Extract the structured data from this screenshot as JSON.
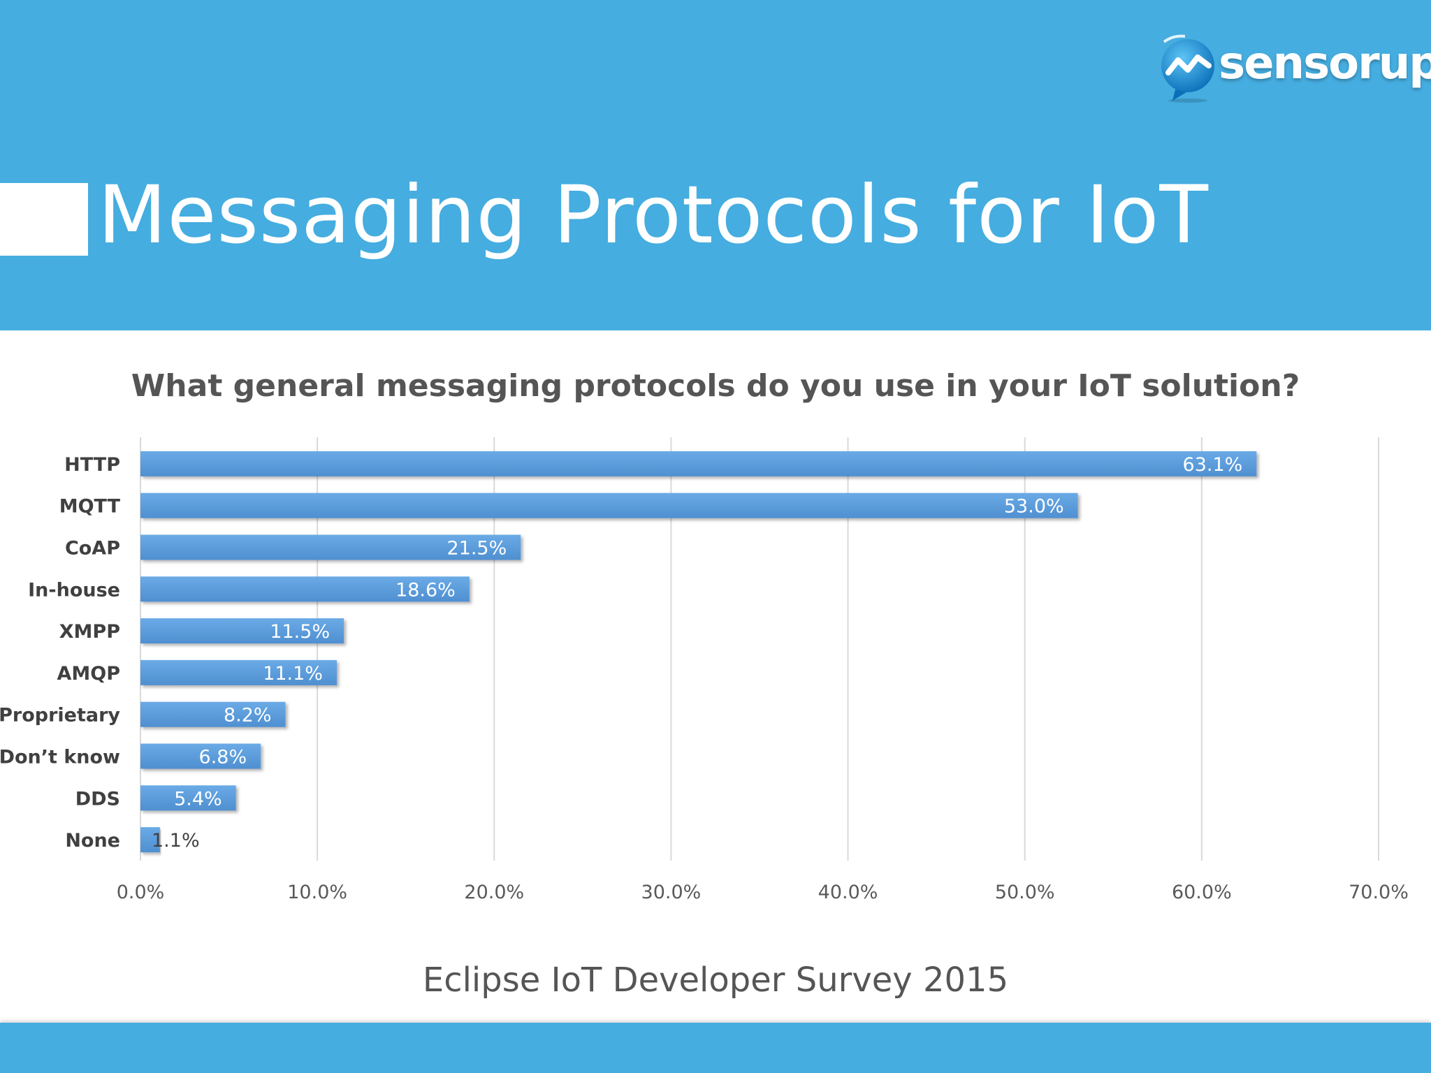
{
  "slide": {
    "title": "Messaging Protocols for IoT",
    "logo_text": "sensorup",
    "footer": "Eclipse IoT Developer Survey 2015"
  },
  "colors": {
    "header_bg": "#45ade0",
    "bar_fill": "#5b9bd5",
    "bar_fill_light": "#6fb0ec",
    "gridline": "#d9d9d9",
    "text_dark": "#555555",
    "white": "#ffffff"
  },
  "chart_data": {
    "type": "bar",
    "orientation": "horizontal",
    "title": "What general messaging protocols do you use in your IoT solution?",
    "categories": [
      "HTTP",
      "MQTT",
      "CoAP",
      "In-house",
      "XMPP",
      "AMQP",
      "Proprietary",
      "Don’t know",
      "DDS",
      "None"
    ],
    "values": [
      63.1,
      53.0,
      21.5,
      18.6,
      11.5,
      11.1,
      8.2,
      6.8,
      5.4,
      1.1
    ],
    "data_labels": [
      "63.1%",
      "53.0%",
      "21.5%",
      "18.6%",
      "11.5%",
      "11.1%",
      "8.2%",
      "6.8%",
      "5.4%",
      "1.1%"
    ],
    "xlim": [
      0,
      70
    ],
    "x_ticks": [
      0,
      10,
      20,
      30,
      40,
      50,
      60,
      70
    ],
    "x_tick_labels": [
      "0.0%",
      "10.0%",
      "20.0%",
      "30.0%",
      "40.0%",
      "50.0%",
      "60.0%",
      "70.0%"
    ],
    "xlabel": "",
    "ylabel": "",
    "grid": "vertical",
    "legend": "none"
  }
}
